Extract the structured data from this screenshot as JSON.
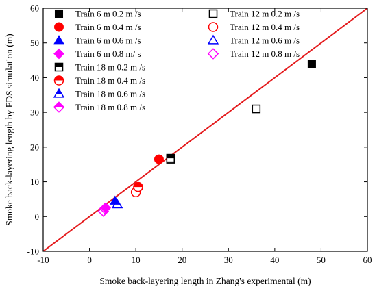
{
  "chart_data": {
    "type": "scatter",
    "xlabel": "Smoke back-layering length in Zhang's experimental (m)",
    "ylabel": "Smoke back-layering length by FDS simulation (m)",
    "xlim": [
      -10,
      60
    ],
    "ylim": [
      -10,
      60
    ],
    "xticks": [
      -10,
      0,
      10,
      20,
      30,
      40,
      50,
      60
    ],
    "yticks": [
      -10,
      0,
      10,
      20,
      30,
      40,
      50,
      60
    ],
    "grid": false,
    "legend_position": "top-left",
    "reference_line": {
      "points": [
        [
          -10,
          -10
        ],
        [
          60,
          60
        ]
      ],
      "color": "#e41a1c"
    },
    "series": [
      {
        "name": "Train 6 m 0.2 m /s",
        "marker": "square",
        "fill": "full",
        "color": "#000000",
        "points": [
          [
            48,
            44
          ]
        ]
      },
      {
        "name": "Train 6 m 0.4 m /s",
        "marker": "circle",
        "fill": "full",
        "color": "#ff0000",
        "points": [
          [
            15,
            16.5
          ]
        ]
      },
      {
        "name": "Train 6 m 0.6 m /s",
        "marker": "triangle",
        "fill": "full",
        "color": "#0000ff",
        "points": [
          [
            5.5,
            4.5
          ]
        ]
      },
      {
        "name": "Train 6 m 0.8 m/ s",
        "marker": "diamond",
        "fill": "full",
        "color": "#ff00ff",
        "points": [
          [
            3.5,
            2.5
          ]
        ]
      },
      {
        "name": "Train 18 m 0.2 m /s",
        "marker": "square",
        "fill": "top",
        "color": "#000000",
        "points": [
          [
            17.5,
            16.8
          ]
        ]
      },
      {
        "name": "Train 18 m 0.4 m /s",
        "marker": "circle",
        "fill": "top",
        "color": "#ff0000",
        "points": [
          [
            10.5,
            8.5
          ]
        ]
      },
      {
        "name": "Train 18 m 0.6 m /s",
        "marker": "triangle",
        "fill": "top",
        "color": "#0000ff",
        "points": [
          [
            6,
            3.5
          ]
        ]
      },
      {
        "name": "Train 18 m 0.8 m /s",
        "marker": "diamond",
        "fill": "top",
        "color": "#ff00ff",
        "points": [
          [
            3.3,
            2.3
          ]
        ]
      },
      {
        "name": "Train 12 m 0.2 m /s",
        "marker": "square",
        "fill": "none",
        "color": "#000000",
        "points": [
          [
            17.5,
            16.5
          ],
          [
            36,
            31
          ]
        ]
      },
      {
        "name": "Train 12 m 0.4 m /s",
        "marker": "circle",
        "fill": "none",
        "color": "#ff0000",
        "points": [
          [
            10,
            7
          ],
          [
            10.5,
            8.5
          ]
        ]
      },
      {
        "name": "Train 12 m 0.6 m /s",
        "marker": "triangle",
        "fill": "none",
        "color": "#0000ff",
        "points": [
          [
            6,
            3.5
          ]
        ]
      },
      {
        "name": "Train 12 m 0.8 m /s",
        "marker": "diamond",
        "fill": "none",
        "color": "#ff00ff",
        "points": [
          [
            3,
            1.5
          ]
        ]
      }
    ],
    "legend_columns": [
      [
        "Train 6 m 0.2 m /s",
        "Train 6 m 0.4 m /s",
        "Train 6 m 0.6 m /s",
        "Train 6 m 0.8 m/ s",
        "Train 18 m 0.2 m /s",
        "Train 18 m 0.4 m /s",
        "Train 18 m 0.6 m /s",
        "Train 18 m 0.8 m /s"
      ],
      [
        "Train 12 m 0.2 m /s",
        "Train 12 m 0.4 m /s",
        "Train 12 m 0.6 m /s",
        "Train 12 m 0.8 m /s"
      ]
    ]
  }
}
